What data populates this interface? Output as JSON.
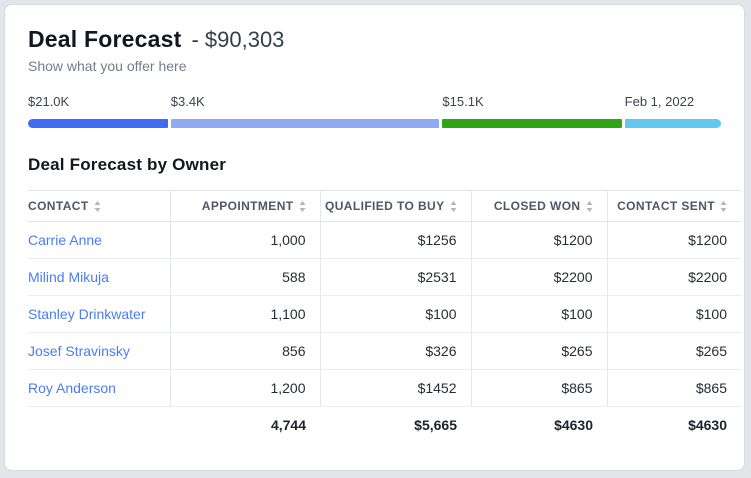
{
  "page": {
    "title": "Deal Forecast",
    "title_amount": "- $90,303",
    "subtitle": "Show what you offer here"
  },
  "progress": {
    "segments": [
      {
        "label": "$21.0K",
        "color": "#3E6CF4",
        "weight": 142
      },
      {
        "label": "$3.4K",
        "color": "#8FA9F3",
        "weight": 273
      },
      {
        "label": "$15.1K",
        "color": "#2FA414",
        "weight": 182
      },
      {
        "label": "Feb 1, 2022",
        "color": "#63C8EF",
        "weight": 98
      }
    ],
    "label_offsets_pct": [
      0,
      20.6,
      59.8,
      86.1
    ]
  },
  "section": {
    "title": "Deal Forecast by Owner"
  },
  "table": {
    "columns": [
      {
        "label": "CONTACT"
      },
      {
        "label": "APPOINTMENT"
      },
      {
        "label": "QUALIFIED TO BUY"
      },
      {
        "label": "CLOSED WON"
      },
      {
        "label": "CONTACT SENT"
      }
    ],
    "rows": [
      {
        "contact": "Carrie Anne",
        "appointment": "1,000",
        "qualified": "$1256",
        "closed": "$1200",
        "sent": "$1200"
      },
      {
        "contact": "Milind Mikuja",
        "appointment": "588",
        "qualified": "$2531",
        "closed": "$2200",
        "sent": "$2200"
      },
      {
        "contact": "Stanley Drinkwater",
        "appointment": "1,100",
        "qualified": "$100",
        "closed": "$100",
        "sent": "$100"
      },
      {
        "contact": "Josef Stravinsky",
        "appointment": "856",
        "qualified": "$326",
        "closed": "$265",
        "sent": "$265"
      },
      {
        "contact": "Roy Anderson",
        "appointment": "1,200",
        "qualified": "$1452",
        "closed": "$865",
        "sent": "$865"
      }
    ],
    "totals": {
      "appointment": "4,744",
      "qualified": "$5,665",
      "closed": "$4630",
      "sent": "$4630"
    }
  },
  "colors": {
    "link": "#4A7DF2",
    "sort_icon": "#B0B6C3"
  }
}
